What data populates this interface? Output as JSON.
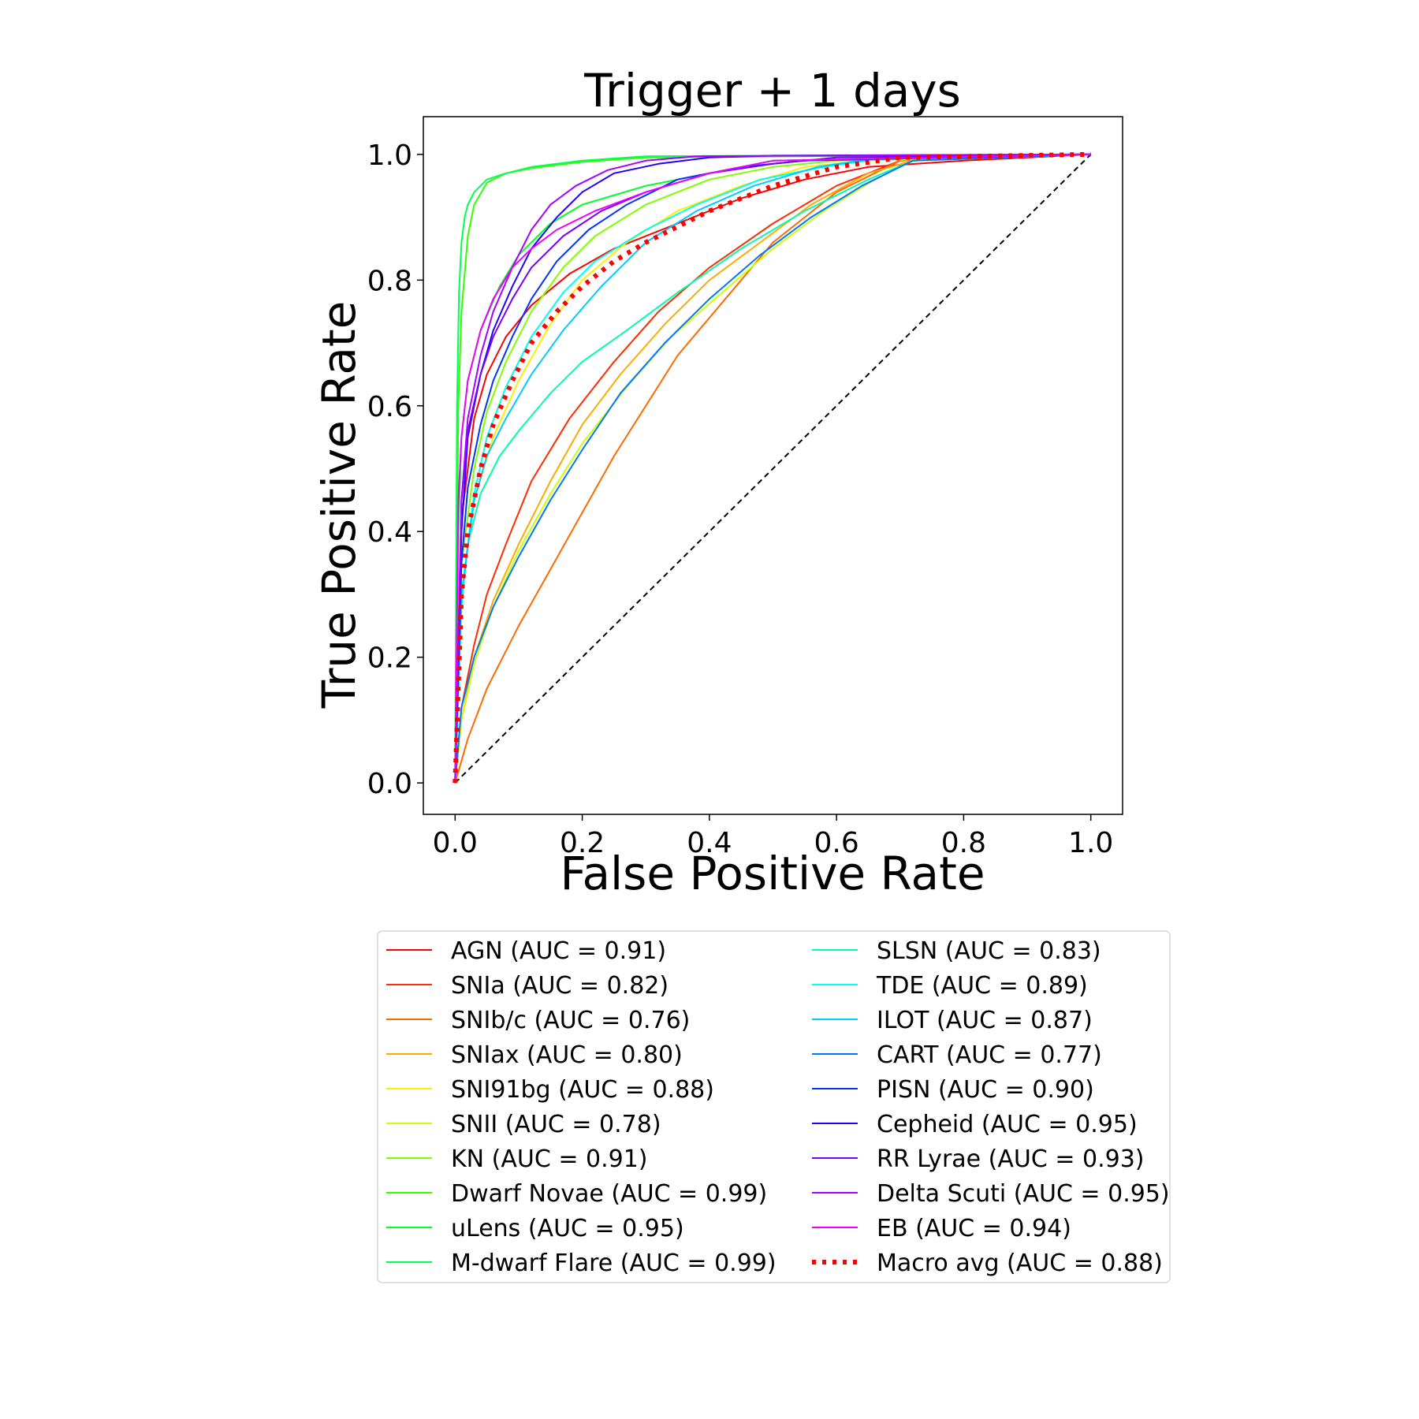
{
  "chart_data": {
    "type": "line",
    "title": "Trigger + 1 days",
    "xlabel": "False Positive Rate",
    "ylabel": "True Positive Rate",
    "xlim": [
      -0.05,
      1.05
    ],
    "ylim": [
      -0.05,
      1.06
    ],
    "xticks": [
      "0.0",
      "0.2",
      "0.4",
      "0.6",
      "0.8",
      "1.0"
    ],
    "yticks": [
      "0.0",
      "0.2",
      "0.4",
      "0.6",
      "0.8",
      "1.0"
    ],
    "grid": false,
    "legend_position": "below",
    "series": [
      {
        "name": "AGN (AUC = 0.91)",
        "color": "#ff0000",
        "style": "solid",
        "x": [
          0,
          0.01,
          0.03,
          0.05,
          0.08,
          0.12,
          0.18,
          0.25,
          0.35,
          0.45,
          0.55,
          0.65,
          0.8,
          1.0
        ],
        "y": [
          0,
          0.42,
          0.58,
          0.65,
          0.71,
          0.76,
          0.81,
          0.85,
          0.89,
          0.93,
          0.96,
          0.98,
          0.99,
          1.0
        ]
      },
      {
        "name": "SNIa (AUC = 0.82)",
        "color": "#ff2d00",
        "style": "solid",
        "x": [
          0,
          0.01,
          0.03,
          0.05,
          0.08,
          0.12,
          0.18,
          0.25,
          0.32,
          0.4,
          0.5,
          0.6,
          0.7,
          1.0
        ],
        "y": [
          0,
          0.12,
          0.22,
          0.3,
          0.38,
          0.48,
          0.58,
          0.67,
          0.75,
          0.82,
          0.89,
          0.95,
          0.99,
          1.0
        ]
      },
      {
        "name": "SNIb/c (AUC = 0.76)",
        "color": "#ff6a00",
        "style": "solid",
        "x": [
          0,
          0.02,
          0.05,
          0.1,
          0.15,
          0.2,
          0.25,
          0.3,
          0.35,
          0.4,
          0.45,
          0.5,
          0.55,
          0.6,
          0.7,
          1.0
        ],
        "y": [
          0,
          0.07,
          0.15,
          0.25,
          0.34,
          0.43,
          0.52,
          0.6,
          0.68,
          0.74,
          0.8,
          0.86,
          0.9,
          0.94,
          0.99,
          1.0
        ]
      },
      {
        "name": "SNIax (AUC = 0.80)",
        "color": "#ffaa00",
        "style": "solid",
        "x": [
          0,
          0.01,
          0.03,
          0.06,
          0.1,
          0.15,
          0.2,
          0.26,
          0.33,
          0.4,
          0.48,
          0.56,
          0.65,
          0.72,
          1.0
        ],
        "y": [
          0,
          0.1,
          0.2,
          0.29,
          0.38,
          0.48,
          0.57,
          0.65,
          0.73,
          0.8,
          0.86,
          0.92,
          0.97,
          0.99,
          1.0
        ]
      },
      {
        "name": "SNI91bg (AUC = 0.88)",
        "color": "#ffee00",
        "style": "solid",
        "x": [
          0,
          0.01,
          0.03,
          0.06,
          0.1,
          0.15,
          0.2,
          0.27,
          0.35,
          0.45,
          0.55,
          0.65,
          1.0
        ],
        "y": [
          0,
          0.3,
          0.45,
          0.55,
          0.64,
          0.73,
          0.8,
          0.86,
          0.91,
          0.95,
          0.98,
          0.99,
          1.0
        ]
      },
      {
        "name": "SNII (AUC = 0.78)",
        "color": "#ccff00",
        "style": "solid",
        "x": [
          0,
          0.01,
          0.03,
          0.06,
          0.1,
          0.15,
          0.2,
          0.27,
          0.34,
          0.42,
          0.5,
          0.58,
          0.66,
          0.72,
          1.0
        ],
        "y": [
          0,
          0.1,
          0.19,
          0.28,
          0.37,
          0.46,
          0.54,
          0.63,
          0.71,
          0.78,
          0.85,
          0.91,
          0.96,
          0.99,
          1.0
        ]
      },
      {
        "name": "KN (AUC = 0.91)",
        "color": "#7fff00",
        "style": "solid",
        "x": [
          0,
          0.01,
          0.03,
          0.05,
          0.08,
          0.12,
          0.17,
          0.22,
          0.3,
          0.4,
          0.5,
          0.6,
          1.0
        ],
        "y": [
          0,
          0.35,
          0.5,
          0.59,
          0.67,
          0.75,
          0.82,
          0.87,
          0.92,
          0.96,
          0.98,
          0.99,
          1.0
        ]
      },
      {
        "name": "Dwarf Novae (AUC = 0.99)",
        "color": "#33ff00",
        "style": "solid",
        "x": [
          0,
          0.005,
          0.01,
          0.02,
          0.03,
          0.05,
          0.08,
          0.12,
          0.2,
          0.3,
          1.0
        ],
        "y": [
          0,
          0.6,
          0.75,
          0.87,
          0.92,
          0.955,
          0.97,
          0.978,
          0.988,
          0.995,
          1.0
        ]
      },
      {
        "name": "uLens (AUC = 0.95)",
        "color": "#00ff22",
        "style": "solid",
        "x": [
          0,
          0.005,
          0.01,
          0.02,
          0.04,
          0.07,
          0.1,
          0.15,
          0.2,
          0.3,
          0.4,
          0.5,
          1.0
        ],
        "y": [
          0,
          0.4,
          0.55,
          0.64,
          0.72,
          0.79,
          0.84,
          0.89,
          0.92,
          0.95,
          0.97,
          0.99,
          1.0
        ]
      },
      {
        "name": "M-dwarf Flare (AUC = 0.99)",
        "color": "#00ff55",
        "style": "solid",
        "x": [
          0,
          0.003,
          0.006,
          0.01,
          0.015,
          0.02,
          0.03,
          0.05,
          0.08,
          0.12,
          0.2,
          0.3,
          1.0
        ],
        "y": [
          0,
          0.6,
          0.78,
          0.86,
          0.9,
          0.92,
          0.94,
          0.96,
          0.97,
          0.98,
          0.99,
          0.997,
          1.0
        ]
      },
      {
        "name": "SLSN (AUC = 0.83)",
        "color": "#00ffaa",
        "style": "solid",
        "x": [
          0,
          0.01,
          0.02,
          0.04,
          0.07,
          0.1,
          0.15,
          0.2,
          0.27,
          0.35,
          0.45,
          0.55,
          0.65,
          0.72,
          1.0
        ],
        "y": [
          0,
          0.28,
          0.38,
          0.46,
          0.52,
          0.56,
          0.62,
          0.67,
          0.72,
          0.78,
          0.85,
          0.91,
          0.96,
          0.99,
          1.0
        ]
      },
      {
        "name": "TDE (AUC = 0.89)",
        "color": "#00ffee",
        "style": "solid",
        "x": [
          0,
          0.01,
          0.03,
          0.05,
          0.08,
          0.12,
          0.17,
          0.22,
          0.3,
          0.38,
          0.48,
          0.58,
          0.68,
          1.0
        ],
        "y": [
          0,
          0.3,
          0.46,
          0.55,
          0.63,
          0.71,
          0.78,
          0.83,
          0.88,
          0.92,
          0.96,
          0.98,
          0.995,
          1.0
        ]
      },
      {
        "name": "ILOT (AUC = 0.87)",
        "color": "#00ccff",
        "style": "solid",
        "x": [
          0,
          0.01,
          0.03,
          0.05,
          0.08,
          0.12,
          0.17,
          0.23,
          0.3,
          0.38,
          0.47,
          0.57,
          0.67,
          1.0
        ],
        "y": [
          0,
          0.3,
          0.45,
          0.52,
          0.58,
          0.65,
          0.72,
          0.79,
          0.86,
          0.91,
          0.95,
          0.98,
          0.995,
          1.0
        ]
      },
      {
        "name": "CART (AUC = 0.77)",
        "color": "#0077ff",
        "style": "solid",
        "x": [
          0,
          0.01,
          0.03,
          0.06,
          0.1,
          0.15,
          0.2,
          0.26,
          0.33,
          0.4,
          0.48,
          0.56,
          0.64,
          0.72,
          1.0
        ],
        "y": [
          0,
          0.12,
          0.2,
          0.28,
          0.36,
          0.45,
          0.53,
          0.62,
          0.7,
          0.77,
          0.84,
          0.9,
          0.95,
          0.99,
          1.0
        ]
      },
      {
        "name": "PISN (AUC = 0.90)",
        "color": "#0033ff",
        "style": "solid",
        "x": [
          0,
          0.01,
          0.02,
          0.04,
          0.06,
          0.09,
          0.12,
          0.16,
          0.21,
          0.27,
          0.35,
          0.45,
          0.55,
          1.0
        ],
        "y": [
          0,
          0.35,
          0.47,
          0.57,
          0.64,
          0.71,
          0.77,
          0.83,
          0.88,
          0.92,
          0.96,
          0.98,
          0.99,
          1.0
        ]
      },
      {
        "name": "Cepheid (AUC = 0.95)",
        "color": "#2200ff",
        "style": "solid",
        "x": [
          0,
          0.01,
          0.02,
          0.04,
          0.06,
          0.09,
          0.12,
          0.16,
          0.2,
          0.25,
          0.32,
          0.4,
          0.5,
          1.0
        ],
        "y": [
          0,
          0.4,
          0.55,
          0.65,
          0.72,
          0.79,
          0.85,
          0.9,
          0.94,
          0.97,
          0.985,
          0.995,
          0.998,
          1.0
        ]
      },
      {
        "name": "RR Lyrae (AUC = 0.93)",
        "color": "#7700ff",
        "style": "solid",
        "x": [
          0,
          0.01,
          0.02,
          0.04,
          0.06,
          0.09,
          0.12,
          0.17,
          0.23,
          0.3,
          0.4,
          0.5,
          0.6,
          1.0
        ],
        "y": [
          0,
          0.45,
          0.56,
          0.65,
          0.71,
          0.77,
          0.82,
          0.87,
          0.91,
          0.94,
          0.97,
          0.985,
          0.995,
          1.0
        ]
      },
      {
        "name": "Delta Scuti (AUC = 0.95)",
        "color": "#aa00ff",
        "style": "solid",
        "x": [
          0,
          0.01,
          0.02,
          0.04,
          0.06,
          0.09,
          0.12,
          0.15,
          0.19,
          0.24,
          0.3,
          0.38,
          1.0
        ],
        "y": [
          0,
          0.45,
          0.58,
          0.68,
          0.75,
          0.82,
          0.88,
          0.92,
          0.95,
          0.975,
          0.99,
          0.997,
          1.0
        ]
      },
      {
        "name": "EB (AUC = 0.94)",
        "color": "#ee00ff",
        "style": "solid",
        "x": [
          0,
          0.005,
          0.01,
          0.02,
          0.04,
          0.06,
          0.09,
          0.12,
          0.16,
          0.22,
          0.3,
          0.4,
          0.5,
          1.0
        ],
        "y": [
          0,
          0.45,
          0.55,
          0.64,
          0.72,
          0.77,
          0.82,
          0.85,
          0.88,
          0.91,
          0.94,
          0.97,
          0.99,
          1.0
        ]
      },
      {
        "name": "Macro avg (AUC = 0.88)",
        "color": "#ff0000",
        "style": "dotted",
        "x": [
          0,
          0.01,
          0.02,
          0.04,
          0.06,
          0.09,
          0.12,
          0.16,
          0.2,
          0.25,
          0.3,
          0.4,
          0.5,
          0.6,
          0.7,
          1.0
        ],
        "y": [
          0,
          0.3,
          0.4,
          0.5,
          0.57,
          0.64,
          0.7,
          0.75,
          0.79,
          0.83,
          0.86,
          0.91,
          0.95,
          0.98,
          0.995,
          1.0
        ]
      },
      {
        "name": "",
        "color": "#000000",
        "style": "dashed",
        "x": [
          0,
          1.0
        ],
        "y": [
          0,
          1.0
        ]
      }
    ]
  }
}
